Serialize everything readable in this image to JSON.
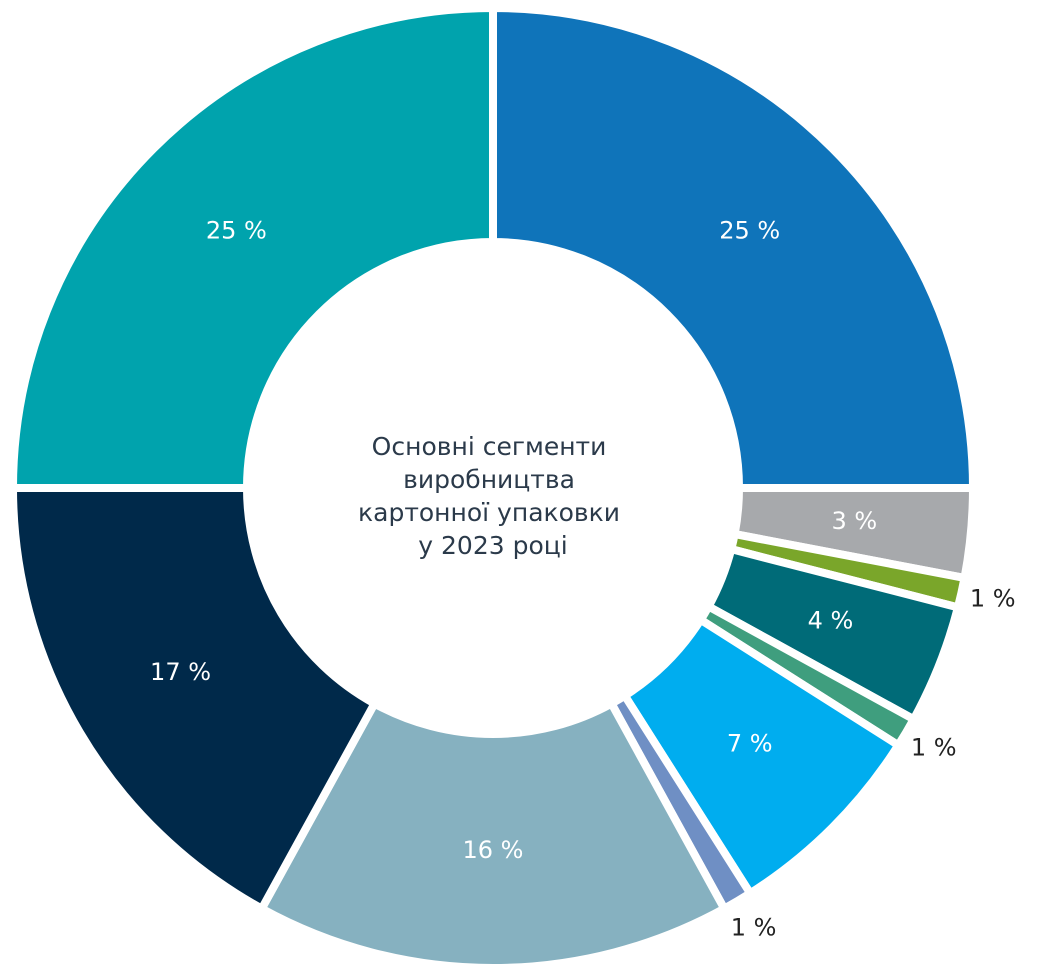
{
  "chart_data": {
    "type": "donut",
    "title": [
      "Основні сегменти",
      "виробництва",
      "картонної упаковки",
      "у 2023 році"
    ],
    "values": [
      25,
      3,
      1,
      4,
      1,
      7,
      1,
      16,
      17,
      25
    ],
    "value_labels": [
      "25 %",
      "3 %",
      "1 %",
      "4 %",
      "1 %",
      "7 %",
      "1 %",
      "16 %",
      "17 %",
      "25 %"
    ],
    "colors": [
      "#0f74ba",
      "#a7a9ac",
      "#7aa62a",
      "#006b78",
      "#3f9e7e",
      "#00adef",
      "#6f8fc4",
      "#86b1c0",
      "#00294a",
      "#00a3ad"
    ]
  }
}
